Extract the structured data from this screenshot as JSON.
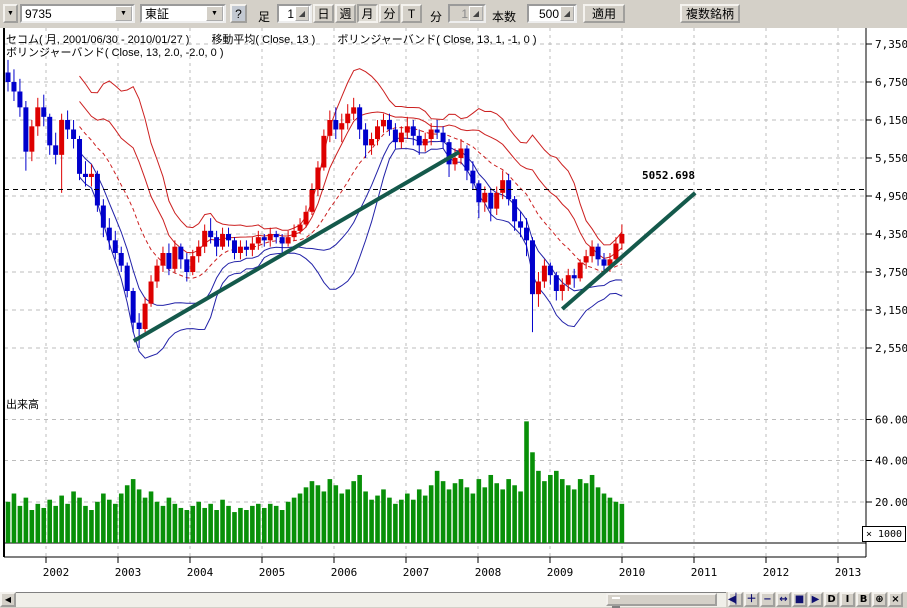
{
  "toolbar": {
    "history_drop_glyph": "▼",
    "symbol_value": "9735",
    "exchange_value": "東証",
    "help_label": "?",
    "bar_label": "足",
    "bar_interval_value": "1",
    "period_buttons": [
      {
        "label": "日",
        "pressed": false
      },
      {
        "label": "週",
        "pressed": false
      },
      {
        "label": "月",
        "pressed": true
      },
      {
        "label": "分",
        "pressed": false
      },
      {
        "label": "T",
        "pressed": false
      }
    ],
    "minute_label": "分",
    "minute_value": "1",
    "count_label": "本数",
    "count_value": "500",
    "apply_label": "適用",
    "multi_symbol_label": "複数銘柄"
  },
  "chart_header": {
    "series_info": "セコム( 月, 2001/06/30 - 2010/01/27 )",
    "ma_info": "移動平均( Close, 13 )",
    "bb1_info": "ボリンジャーバンド( Close, 13, 1, -1, 0 )",
    "bb2_info": "ボリンジャーバンド( Close, 13, 2.0, -2.0, 0 )"
  },
  "volume_pane_label": "出来高",
  "scale_box_label": "× 1000",
  "price_level_label": "5052.698",
  "scrollbar": {
    "left_arrow_glyph": "◀",
    "nav_buttons": [
      "◀▏",
      "＋",
      "−",
      "↔",
      "■",
      "▶",
      "D",
      "I",
      "B",
      "⊕",
      "×"
    ]
  },
  "chart_data": {
    "type": "candlestick",
    "title": "セコム 月足 2001/06/30 - 2010/01/27",
    "start_month": "2001-06",
    "end_month": "2010-01",
    "price_axis": {
      "tick_values": [
        7350,
        6750,
        6150,
        5550,
        4950,
        4350,
        3750,
        3150,
        2550
      ],
      "tick_labels": [
        "7,350",
        "6,750",
        "6,150",
        "5,550",
        "4,950",
        "4,350",
        "3,750",
        "3,150",
        "2,550"
      ]
    },
    "volume_axis": {
      "tick_values": [
        60,
        40,
        20
      ],
      "tick_labels": [
        "60.00",
        "40.00",
        "20.00"
      ],
      "unit": "× 1000"
    },
    "year_ticks": [
      2002,
      2003,
      2004,
      2005,
      2006,
      2007,
      2008,
      2009,
      2010,
      2011,
      2012,
      2013
    ],
    "overlays": {
      "moving_average": {
        "source": "Close",
        "period": 13,
        "style": "dashed-red"
      },
      "bollinger_1": {
        "source": "Close",
        "period": 13,
        "upper": 1,
        "lower": -1
      },
      "bollinger_2": {
        "source": "Close",
        "period": 13,
        "upper": 2.0,
        "lower": -2.0
      }
    },
    "horizontal_line": {
      "value": 5052.698,
      "label": "5052.698",
      "style": "black-dashed"
    },
    "trend_lines": [
      {
        "from": {
          "month_index": 21.1,
          "price": 2660
        },
        "to": {
          "month_index": 75.7,
          "price": 5645
        }
      },
      {
        "from": {
          "month_index": 93.0,
          "price": 3165
        },
        "to": {
          "month_index": 115.3,
          "price": 5000
        }
      }
    ],
    "candles_ohlc": [
      [
        6900,
        7100,
        6600,
        6750
      ],
      [
        6750,
        6950,
        6450,
        6600
      ],
      [
        6600,
        6800,
        6200,
        6350
      ],
      [
        6350,
        6450,
        5350,
        5650
      ],
      [
        5650,
        6150,
        5500,
        6050
      ],
      [
        6050,
        6500,
        5900,
        6350
      ],
      [
        6350,
        6550,
        6050,
        6200
      ],
      [
        6200,
        6250,
        5600,
        5750
      ],
      [
        5750,
        5950,
        5450,
        5600
      ],
      [
        5600,
        6250,
        5000,
        6150
      ],
      [
        6150,
        6300,
        5850,
        6000
      ],
      [
        6000,
        6150,
        5700,
        5850
      ],
      [
        5850,
        5900,
        5200,
        5300
      ],
      [
        5300,
        5500,
        5100,
        5250
      ],
      [
        5250,
        5450,
        5100,
        5300
      ],
      [
        5300,
        5350,
        4700,
        4800
      ],
      [
        4800,
        4900,
        4300,
        4450
      ],
      [
        4450,
        4600,
        4100,
        4250
      ],
      [
        4250,
        4400,
        3950,
        4050
      ],
      [
        4050,
        4150,
        3750,
        3850
      ],
      [
        3850,
        3900,
        3350,
        3450
      ],
      [
        3450,
        3500,
        2800,
        2950
      ],
      [
        2950,
        3100,
        2550,
        2850
      ],
      [
        2850,
        3350,
        2800,
        3250
      ],
      [
        3250,
        3700,
        3200,
        3600
      ],
      [
        3600,
        3950,
        3500,
        3850
      ],
      [
        3850,
        4150,
        3750,
        4050
      ],
      [
        4050,
        4200,
        3700,
        3800
      ],
      [
        3800,
        4250,
        3750,
        4150
      ],
      [
        4150,
        4200,
        3800,
        3950
      ],
      [
        3950,
        4050,
        3600,
        3750
      ],
      [
        3750,
        4100,
        3700,
        4000
      ],
      [
        4000,
        4250,
        3900,
        4150
      ],
      [
        4150,
        4500,
        4050,
        4400
      ],
      [
        4400,
        4600,
        4200,
        4300
      ],
      [
        4300,
        4400,
        4000,
        4150
      ],
      [
        4150,
        4450,
        4100,
        4350
      ],
      [
        4350,
        4450,
        4150,
        4250
      ],
      [
        4250,
        4300,
        3950,
        4050
      ],
      [
        4050,
        4250,
        3950,
        4150
      ],
      [
        4150,
        4250,
        4000,
        4100
      ],
      [
        4100,
        4300,
        4000,
        4200
      ],
      [
        4200,
        4400,
        4100,
        4300
      ],
      [
        4300,
        4350,
        4150,
        4250
      ],
      [
        4250,
        4450,
        4150,
        4350
      ],
      [
        4350,
        4400,
        4200,
        4300
      ],
      [
        4300,
        4350,
        4050,
        4200
      ],
      [
        4200,
        4400,
        4150,
        4300
      ],
      [
        4300,
        4500,
        4250,
        4400
      ],
      [
        4400,
        4600,
        4350,
        4500
      ],
      [
        4500,
        4800,
        4450,
        4700
      ],
      [
        4700,
        5150,
        4650,
        5050
      ],
      [
        5050,
        5500,
        4950,
        5400
      ],
      [
        5400,
        6000,
        5350,
        5900
      ],
      [
        5900,
        6300,
        5800,
        6150
      ],
      [
        6150,
        6350,
        5850,
        6000
      ],
      [
        6000,
        6250,
        5800,
        6100
      ],
      [
        6100,
        6400,
        6000,
        6250
      ],
      [
        6250,
        6500,
        6150,
        6350
      ],
      [
        6350,
        6400,
        5850,
        6000
      ],
      [
        6000,
        6100,
        5550,
        5750
      ],
      [
        5750,
        5950,
        5600,
        5850
      ],
      [
        5850,
        6150,
        5750,
        6050
      ],
      [
        6050,
        6250,
        5950,
        6150
      ],
      [
        6150,
        6250,
        5900,
        6000
      ],
      [
        6000,
        6100,
        5700,
        5800
      ],
      [
        5800,
        6050,
        5700,
        5950
      ],
      [
        5950,
        6200,
        5850,
        6050
      ],
      [
        6050,
        6150,
        5750,
        5900
      ],
      [
        5900,
        6000,
        5600,
        5750
      ],
      [
        5750,
        5950,
        5650,
        5850
      ],
      [
        5850,
        6100,
        5750,
        6000
      ],
      [
        6000,
        6150,
        5850,
        5950
      ],
      [
        5950,
        6050,
        5700,
        5800
      ],
      [
        5800,
        5850,
        5250,
        5450
      ],
      [
        5450,
        5700,
        5350,
        5550
      ],
      [
        5550,
        5850,
        5450,
        5700
      ],
      [
        5700,
        5750,
        5200,
        5350
      ],
      [
        5350,
        5500,
        5050,
        5150
      ],
      [
        5150,
        5200,
        4600,
        4850
      ],
      [
        4850,
        5100,
        4700,
        5000
      ],
      [
        5000,
        5050,
        4550,
        4750
      ],
      [
        4750,
        5100,
        4650,
        5000
      ],
      [
        5000,
        5350,
        4900,
        5200
      ],
      [
        5200,
        5300,
        4800,
        4900
      ],
      [
        4900,
        4950,
        4400,
        4550
      ],
      [
        4550,
        4700,
        4300,
        4450
      ],
      [
        4450,
        4600,
        4000,
        4250
      ],
      [
        4250,
        4300,
        2800,
        3400
      ],
      [
        3400,
        3750,
        3200,
        3600
      ],
      [
        3600,
        3950,
        3500,
        3850
      ],
      [
        3850,
        3900,
        3550,
        3700
      ],
      [
        3700,
        3750,
        3300,
        3450
      ],
      [
        3450,
        3650,
        3300,
        3550
      ],
      [
        3550,
        3800,
        3450,
        3700
      ],
      [
        3700,
        3800,
        3500,
        3650
      ],
      [
        3650,
        3950,
        3600,
        3900
      ],
      [
        3900,
        4100,
        3800,
        4000
      ],
      [
        4000,
        4250,
        3900,
        4150
      ],
      [
        4150,
        4200,
        3850,
        3950
      ],
      [
        3950,
        4050,
        3750,
        3850
      ],
      [
        3850,
        4050,
        3750,
        3950
      ],
      [
        3950,
        4300,
        3900,
        4200
      ],
      [
        4200,
        4500,
        4100,
        4350
      ]
    ],
    "volumes_k": [
      20,
      24,
      18,
      22,
      16,
      19,
      17,
      21,
      18,
      23,
      19,
      25,
      22,
      18,
      16,
      20,
      24,
      21,
      19,
      24,
      28,
      31,
      26,
      22,
      25,
      20,
      18,
      22,
      19,
      17,
      16,
      18,
      20,
      17,
      19,
      16,
      21,
      18,
      15,
      17,
      16,
      18,
      19,
      17,
      19,
      18,
      16,
      20,
      22,
      24,
      27,
      30,
      28,
      25,
      31,
      28,
      24,
      26,
      30,
      33,
      25,
      21,
      23,
      26,
      22,
      19,
      21,
      24,
      21,
      26,
      23,
      28,
      35,
      30,
      26,
      29,
      31,
      27,
      24,
      31,
      27,
      33,
      29,
      26,
      31,
      28,
      25,
      59,
      44,
      35,
      30,
      33,
      35,
      31,
      28,
      26,
      31,
      29,
      33,
      27,
      24,
      22,
      20,
      19
    ],
    "colors": {
      "candle_up": "#dd0000",
      "candle_down": "#0000cc",
      "band_upper": "#cc2020",
      "band_lower": "#2222a8",
      "ma_line": "#cc2020",
      "volume_bar": "#089008",
      "trend_line": "#14594b",
      "grid": "#bcbcbc"
    }
  }
}
